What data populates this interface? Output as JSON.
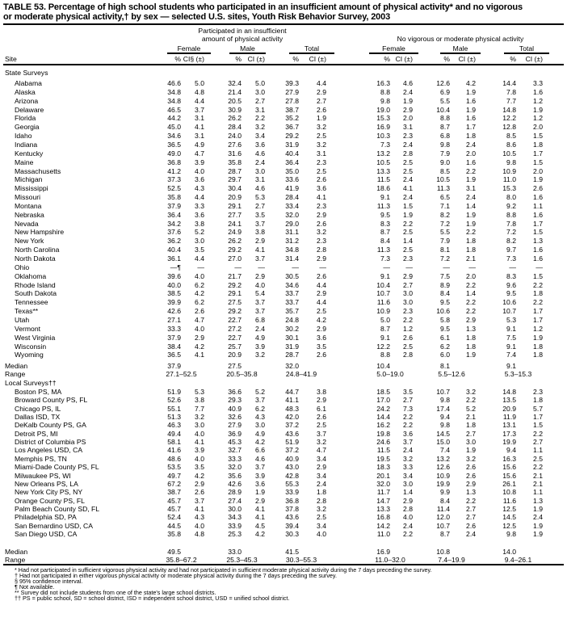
{
  "title": {
    "line1": "TABLE 53. Percentage of high school students who participated in an insufficient amount of physical activity* and no vigorous",
    "line2": "or moderate physical activity,† by sex — selected U.S. sites, Youth Risk Behavior Survey, 2003"
  },
  "header": {
    "group1_line1": "Participated in an insufficient",
    "group1_line2": "amount of physical activity",
    "group2": "No vigorous or moderate physical activity",
    "sexes": [
      "Female",
      "Male",
      "Total",
      "Female",
      "Male",
      "Total"
    ],
    "site_label": "Site",
    "pct_label": "%",
    "ci_first_label": "CI§ (±)",
    "ci_label": "CI (±)"
  },
  "state_section": {
    "label": "State Surveys",
    "rows": [
      {
        "site": "Alabama",
        "v": [
          "46.6",
          "5.0",
          "32.4",
          "5.0",
          "39.3",
          "4.4",
          "16.3",
          "4.6",
          "12.6",
          "4.2",
          "14.4",
          "3.3"
        ]
      },
      {
        "site": "Alaska",
        "v": [
          "34.8",
          "4.8",
          "21.4",
          "3.0",
          "27.9",
          "2.9",
          "8.8",
          "2.4",
          "6.9",
          "1.9",
          "7.8",
          "1.6"
        ]
      },
      {
        "site": "Arizona",
        "v": [
          "34.8",
          "4.4",
          "20.5",
          "2.7",
          "27.8",
          "2.7",
          "9.8",
          "1.9",
          "5.5",
          "1.6",
          "7.7",
          "1.2"
        ]
      },
      {
        "site": "Delaware",
        "v": [
          "46.5",
          "3.7",
          "30.9",
          "3.1",
          "38.7",
          "2.6",
          "19.0",
          "2.9",
          "10.4",
          "1.9",
          "14.8",
          "1.9"
        ]
      },
      {
        "site": "Florida",
        "v": [
          "44.2",
          "3.1",
          "26.2",
          "2.2",
          "35.2",
          "1.9",
          "15.3",
          "2.0",
          "8.8",
          "1.6",
          "12.2",
          "1.2"
        ]
      },
      {
        "site": "Georgia",
        "v": [
          "45.0",
          "4.1",
          "28.4",
          "3.2",
          "36.7",
          "3.2",
          "16.9",
          "3.1",
          "8.7",
          "1.7",
          "12.8",
          "2.0"
        ]
      },
      {
        "site": "Idaho",
        "v": [
          "34.6",
          "3.1",
          "24.0",
          "3.4",
          "29.2",
          "2.5",
          "10.3",
          "2.3",
          "6.8",
          "1.8",
          "8.5",
          "1.5"
        ]
      },
      {
        "site": "Indiana",
        "v": [
          "36.5",
          "4.9",
          "27.6",
          "3.6",
          "31.9",
          "3.2",
          "7.3",
          "2.4",
          "9.8",
          "2.4",
          "8.6",
          "1.8"
        ]
      },
      {
        "site": "Kentucky",
        "v": [
          "49.0",
          "4.7",
          "31.6",
          "4.6",
          "40.4",
          "3.1",
          "13.2",
          "2.8",
          "7.9",
          "2.0",
          "10.5",
          "1.7"
        ]
      },
      {
        "site": "Maine",
        "v": [
          "36.8",
          "3.9",
          "35.8",
          "2.4",
          "36.4",
          "2.3",
          "10.5",
          "2.5",
          "9.0",
          "1.6",
          "9.8",
          "1.5"
        ]
      },
      {
        "site": "Massachusetts",
        "v": [
          "41.2",
          "4.0",
          "28.7",
          "3.0",
          "35.0",
          "2.5",
          "13.3",
          "2.5",
          "8.5",
          "2.2",
          "10.9",
          "2.0"
        ]
      },
      {
        "site": "Michigan",
        "v": [
          "37.3",
          "3.6",
          "29.7",
          "3.1",
          "33.6",
          "2.6",
          "11.5",
          "2.4",
          "10.5",
          "1.9",
          "11.0",
          "1.9"
        ]
      },
      {
        "site": "Mississippi",
        "v": [
          "52.5",
          "4.3",
          "30.4",
          "4.6",
          "41.9",
          "3.6",
          "18.6",
          "4.1",
          "11.3",
          "3.1",
          "15.3",
          "2.6"
        ]
      },
      {
        "site": "Missouri",
        "v": [
          "35.8",
          "4.4",
          "20.9",
          "5.3",
          "28.4",
          "4.1",
          "9.1",
          "2.4",
          "6.5",
          "2.4",
          "8.0",
          "1.6"
        ]
      },
      {
        "site": "Montana",
        "v": [
          "37.9",
          "3.3",
          "29.1",
          "2.7",
          "33.4",
          "2.3",
          "11.3",
          "1.5",
          "7.1",
          "1.4",
          "9.2",
          "1.1"
        ]
      },
      {
        "site": "Nebraska",
        "v": [
          "36.4",
          "3.6",
          "27.7",
          "3.5",
          "32.0",
          "2.9",
          "9.5",
          "1.9",
          "8.2",
          "1.9",
          "8.8",
          "1.6"
        ]
      },
      {
        "site": "Nevada",
        "v": [
          "34.2",
          "3.8",
          "24.1",
          "3.7",
          "29.0",
          "2.6",
          "8.3",
          "2.2",
          "7.2",
          "1.9",
          "7.8",
          "1.7"
        ]
      },
      {
        "site": "New Hampshire",
        "v": [
          "37.6",
          "5.2",
          "24.9",
          "3.8",
          "31.1",
          "3.2",
          "8.7",
          "2.5",
          "5.5",
          "2.2",
          "7.2",
          "1.5"
        ]
      },
      {
        "site": "New York",
        "v": [
          "36.2",
          "3.0",
          "26.2",
          "2.9",
          "31.2",
          "2.3",
          "8.4",
          "1.4",
          "7.9",
          "1.8",
          "8.2",
          "1.3"
        ]
      },
      {
        "site": "North Carolina",
        "v": [
          "40.4",
          "3.5",
          "29.2",
          "4.1",
          "34.8",
          "2.8",
          "11.3",
          "2.5",
          "8.1",
          "1.8",
          "9.7",
          "1.6"
        ]
      },
      {
        "site": "North Dakota",
        "v": [
          "36.1",
          "4.4",
          "27.0",
          "3.7",
          "31.4",
          "2.9",
          "7.3",
          "2.3",
          "7.2",
          "2.1",
          "7.3",
          "1.6"
        ]
      },
      {
        "site": "Ohio",
        "v": [
          "—¶",
          "—",
          "—",
          "—",
          "—",
          "—",
          "—",
          "—",
          "—",
          "—",
          "—",
          "—"
        ]
      },
      {
        "site": "Oklahoma",
        "v": [
          "39.6",
          "4.0",
          "21.7",
          "2.9",
          "30.5",
          "2.6",
          "9.1",
          "2.9",
          "7.5",
          "2.0",
          "8.3",
          "1.5"
        ]
      },
      {
        "site": "Rhode Island",
        "v": [
          "40.0",
          "6.2",
          "29.2",
          "4.0",
          "34.6",
          "4.4",
          "10.4",
          "2.7",
          "8.9",
          "2.2",
          "9.6",
          "2.2"
        ]
      },
      {
        "site": "South Dakota",
        "v": [
          "38.5",
          "4.2",
          "29.1",
          "5.4",
          "33.7",
          "2.9",
          "10.7",
          "3.0",
          "8.4",
          "1.4",
          "9.5",
          "1.8"
        ]
      },
      {
        "site": "Tennessee",
        "v": [
          "39.9",
          "6.2",
          "27.5",
          "3.7",
          "33.7",
          "4.4",
          "11.6",
          "3.0",
          "9.5",
          "2.2",
          "10.6",
          "2.2"
        ]
      },
      {
        "site": "Texas**",
        "v": [
          "42.6",
          "2.6",
          "29.2",
          "3.7",
          "35.7",
          "2.5",
          "10.9",
          "2.3",
          "10.6",
          "2.2",
          "10.7",
          "1.7"
        ]
      },
      {
        "site": "Utah",
        "v": [
          "27.1",
          "4.7",
          "22.7",
          "6.8",
          "24.8",
          "4.2",
          "5.0",
          "2.2",
          "5.8",
          "2.9",
          "5.3",
          "1.7"
        ]
      },
      {
        "site": "Vermont",
        "v": [
          "33.3",
          "4.0",
          "27.2",
          "2.4",
          "30.2",
          "2.9",
          "8.7",
          "1.2",
          "9.5",
          "1.3",
          "9.1",
          "1.2"
        ]
      },
      {
        "site": "West Virginia",
        "v": [
          "37.9",
          "2.9",
          "22.7",
          "4.9",
          "30.1",
          "3.6",
          "9.1",
          "2.6",
          "6.1",
          "1.8",
          "7.5",
          "1.9"
        ]
      },
      {
        "site": "Wisconsin",
        "v": [
          "38.4",
          "4.2",
          "25.7",
          "3.9",
          "31.9",
          "3.5",
          "12.2",
          "2.5",
          "6.2",
          "1.8",
          "9.1",
          "1.8"
        ]
      },
      {
        "site": "Wyoming",
        "v": [
          "36.5",
          "4.1",
          "20.9",
          "3.2",
          "28.7",
          "2.6",
          "8.8",
          "2.8",
          "6.0",
          "1.9",
          "7.4",
          "1.8"
        ]
      }
    ],
    "median_label": "Median",
    "median": [
      "37.9",
      "27.5",
      "32.0",
      "10.4",
      "8.1",
      "9.1"
    ],
    "range_label": "Range",
    "range": [
      "27.1–52.5",
      "20.5–35.8",
      "24.8–41.9",
      "5.0–19.0",
      "5.5–12.6",
      "5.3–15.3"
    ]
  },
  "local_section": {
    "label": "Local Surveys††",
    "rows": [
      {
        "site": "Boston PS, MA",
        "v": [
          "51.9",
          "5.3",
          "36.6",
          "5.2",
          "44.7",
          "3.8",
          "18.5",
          "3.5",
          "10.7",
          "3.2",
          "14.8",
          "2.3"
        ]
      },
      {
        "site": "Broward County PS, FL",
        "v": [
          "52.6",
          "3.8",
          "29.3",
          "3.7",
          "41.1",
          "2.9",
          "17.0",
          "2.7",
          "9.8",
          "2.2",
          "13.5",
          "1.8"
        ]
      },
      {
        "site": "Chicago PS, IL",
        "v": [
          "55.1",
          "7.7",
          "40.9",
          "6.2",
          "48.3",
          "6.1",
          "24.2",
          "7.3",
          "17.4",
          "5.2",
          "20.9",
          "5.7"
        ]
      },
      {
        "site": "Dallas ISD, TX",
        "v": [
          "51.3",
          "3.2",
          "32.6",
          "4.3",
          "42.0",
          "2.6",
          "14.4",
          "2.2",
          "9.4",
          "2.1",
          "11.9",
          "1.7"
        ]
      },
      {
        "site": "DeKalb County PS, GA",
        "v": [
          "46.3",
          "3.0",
          "27.9",
          "3.0",
          "37.2",
          "2.5",
          "16.2",
          "2.2",
          "9.8",
          "1.8",
          "13.1",
          "1.5"
        ]
      },
      {
        "site": "Detroit PS, MI",
        "v": [
          "49.4",
          "4.0",
          "36.9",
          "4.9",
          "43.6",
          "3.7",
          "19.8",
          "3.6",
          "14.5",
          "2.7",
          "17.3",
          "2.2"
        ]
      },
      {
        "site": "District of Columbia PS",
        "v": [
          "58.1",
          "4.1",
          "45.3",
          "4.2",
          "51.9",
          "3.2",
          "24.6",
          "3.7",
          "15.0",
          "3.0",
          "19.9",
          "2.7"
        ]
      },
      {
        "site": "Los Angeles USD, CA",
        "v": [
          "41.6",
          "3.9",
          "32.7",
          "6.6",
          "37.2",
          "4.7",
          "11.5",
          "2.4",
          "7.4",
          "1.9",
          "9.4",
          "1.1"
        ]
      },
      {
        "site": "Memphis PS, TN",
        "v": [
          "48.6",
          "4.0",
          "33.3",
          "4.6",
          "40.9",
          "3.4",
          "19.5",
          "3.2",
          "13.2",
          "3.2",
          "16.3",
          "2.5"
        ]
      },
      {
        "site": "Miami-Dade County PS, FL",
        "v": [
          "53.5",
          "3.5",
          "32.0",
          "3.7",
          "43.0",
          "2.9",
          "18.3",
          "3.3",
          "12.6",
          "2.6",
          "15.6",
          "2.2"
        ]
      },
      {
        "site": "Milwaukee PS, WI",
        "v": [
          "49.7",
          "4.2",
          "35.6",
          "3.9",
          "42.8",
          "3.4",
          "20.1",
          "3.4",
          "10.9",
          "2.6",
          "15.6",
          "2.1"
        ]
      },
      {
        "site": "New Orleans PS, LA",
        "v": [
          "67.2",
          "2.9",
          "42.6",
          "3.6",
          "55.3",
          "2.4",
          "32.0",
          "3.0",
          "19.9",
          "2.9",
          "26.1",
          "2.1"
        ]
      },
      {
        "site": "New York City PS, NY",
        "v": [
          "38.7",
          "2.6",
          "28.9",
          "1.9",
          "33.9",
          "1.8",
          "11.7",
          "1.4",
          "9.9",
          "1.3",
          "10.8",
          "1.1"
        ]
      },
      {
        "site": "Orange County PS, FL",
        "v": [
          "45.7",
          "3.7",
          "27.4",
          "2.9",
          "36.8",
          "2.8",
          "14.7",
          "2.9",
          "8.4",
          "2.2",
          "11.6",
          "1.3"
        ]
      },
      {
        "site": "Palm Beach County SD, FL",
        "v": [
          "45.7",
          "4.1",
          "30.0",
          "4.1",
          "37.8",
          "3.2",
          "13.3",
          "2.8",
          "11.4",
          "2.7",
          "12.5",
          "1.9"
        ]
      },
      {
        "site": "Philadelphia SD, PA",
        "v": [
          "52.4",
          "4.3",
          "34.3",
          "4.1",
          "43.6",
          "2.5",
          "16.8",
          "4.0",
          "12.0",
          "2.7",
          "14.5",
          "2.4"
        ]
      },
      {
        "site": "San Bernardino USD, CA",
        "v": [
          "44.5",
          "4.0",
          "33.9",
          "4.5",
          "39.4",
          "3.4",
          "14.2",
          "2.4",
          "10.7",
          "2.6",
          "12.5",
          "1.9"
        ]
      },
      {
        "site": "San Diego USD, CA",
        "v": [
          "35.8",
          "4.8",
          "25.3",
          "4.2",
          "30.3",
          "4.0",
          "11.0",
          "2.2",
          "8.7",
          "2.4",
          "9.8",
          "1.9"
        ]
      }
    ],
    "median_label": "Median",
    "median": [
      "49.5",
      "33.0",
      "41.5",
      "16.9",
      "10.8",
      "14.0"
    ],
    "range_label": "Range",
    "range": [
      "35.8–67.2",
      "25.3–45.3",
      "30.3–55.3",
      "11.0–32.0",
      "7.4–19.9",
      "9.4–26.1"
    ]
  },
  "footnotes": [
    "* Had not participated in sufficient vigorous physical activity and had not participated in sufficient moderate physical activity during the 7 days preceding the survey.",
    "† Had not participated in either vigorous physical activity or moderate physical activity during the 7 days preceding the survey.",
    "§ 95% confidence interval.",
    "¶ Not available.",
    "** Survey did not include students from one of the state's large school districts.",
    "†† PS = public school, SD = school district, ISD = independent school district, USD = unified school district."
  ]
}
